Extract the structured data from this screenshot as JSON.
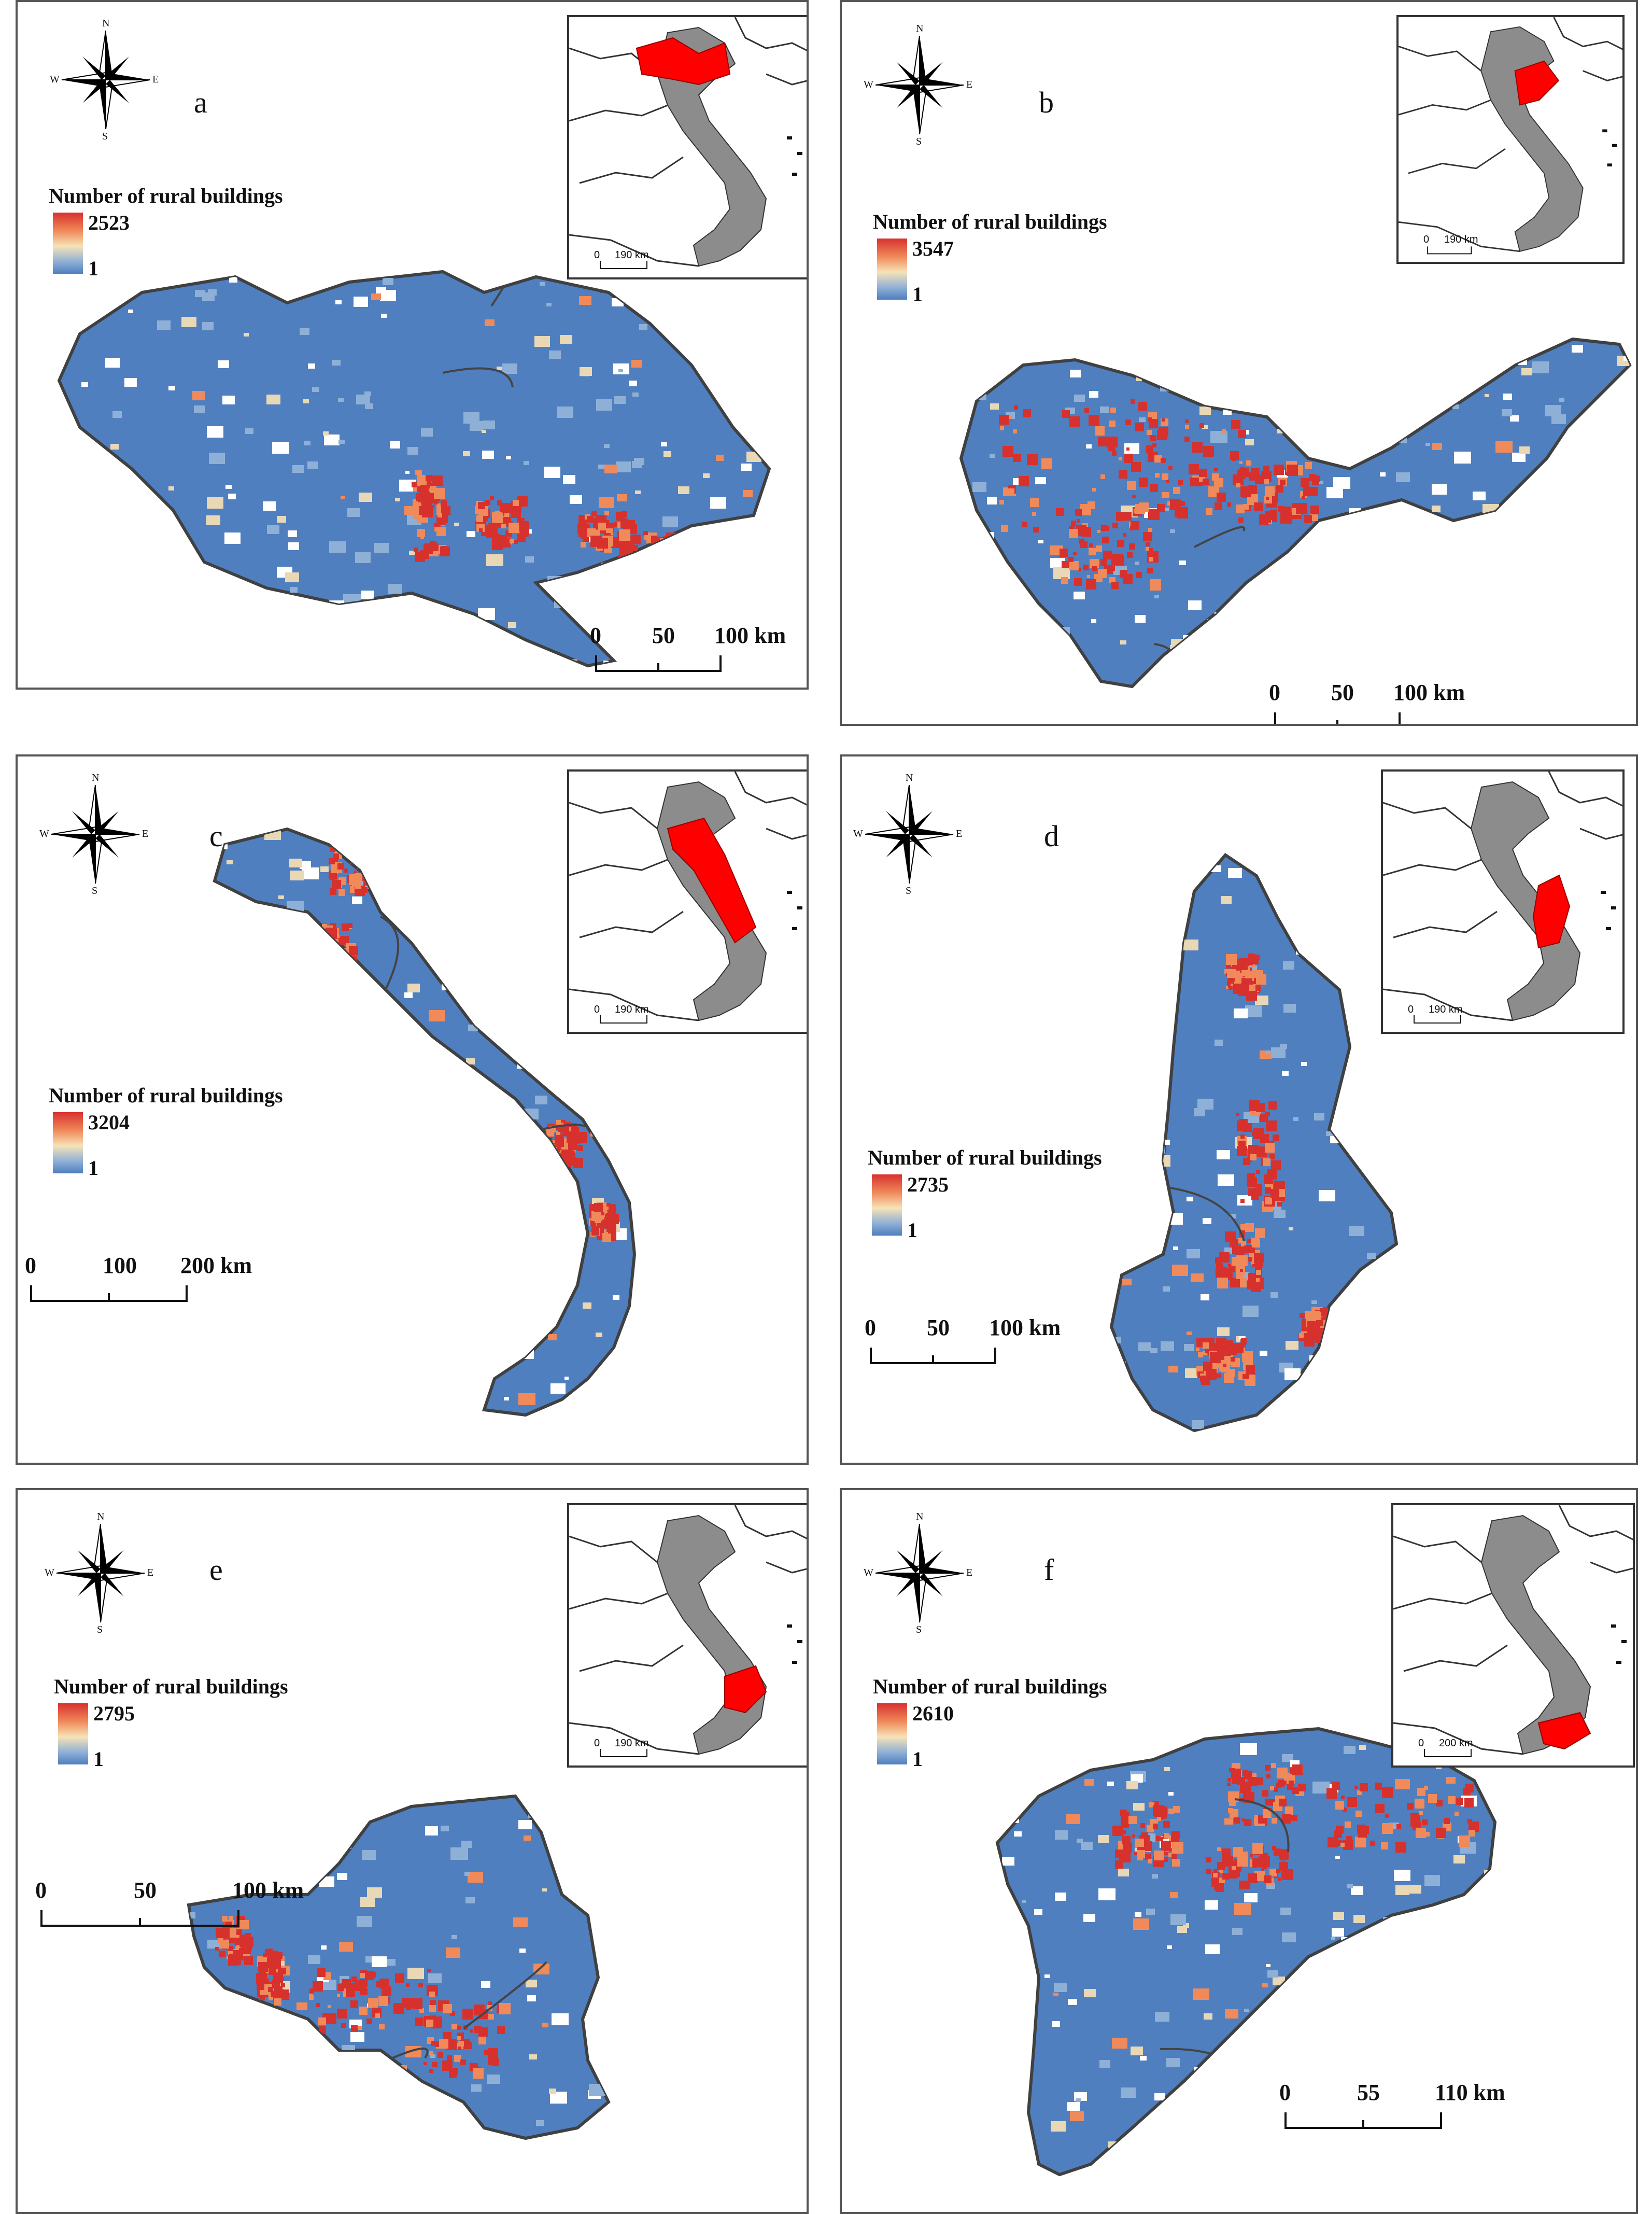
{
  "panels": [
    {
      "letter": "a",
      "legend_title": "Number of rural buildings",
      "legend_max": "2523",
      "legend_min": "1",
      "scale": [
        "0",
        "50",
        "100 km"
      ],
      "inset_scale": [
        "0",
        "190 km"
      ]
    },
    {
      "letter": "b",
      "legend_title": "Number of rural buildings",
      "legend_max": "3547",
      "legend_min": "1",
      "scale": [
        "0",
        "50",
        "100 km"
      ],
      "inset_scale": [
        "0",
        "190 km"
      ]
    },
    {
      "letter": "c",
      "legend_title": "Number of rural buildings",
      "legend_max": "3204",
      "legend_min": "1",
      "scale": [
        "0",
        "100",
        "200 km"
      ],
      "inset_scale": [
        "0",
        "190 km"
      ]
    },
    {
      "letter": "d",
      "legend_title": "Number of rural buildings",
      "legend_max": "2735",
      "legend_min": "1",
      "scale": [
        "0",
        "50",
        "100 km"
      ],
      "inset_scale": [
        "0",
        "190 km"
      ]
    },
    {
      "letter": "e",
      "legend_title": "Number of rural buildings",
      "legend_max": "2795",
      "legend_min": "1",
      "scale": [
        "0",
        "50",
        "100 km"
      ],
      "inset_scale": [
        "0",
        "190 km"
      ]
    },
    {
      "letter": "f",
      "legend_title": "Number of rural buildings",
      "legend_max": "2610",
      "legend_min": "1",
      "scale": [
        "0",
        "55",
        "110 km"
      ],
      "inset_scale": [
        "0",
        "200 km"
      ]
    }
  ],
  "compass": {
    "n": "N",
    "s": "S",
    "e": "E",
    "w": "W"
  },
  "colors": {
    "low": "#4f7fbf",
    "mid": "#f6e3b8",
    "high": "#d7312e",
    "highlight": "#ff0000",
    "country": "#8c8c8c",
    "boundary": "#404040"
  }
}
